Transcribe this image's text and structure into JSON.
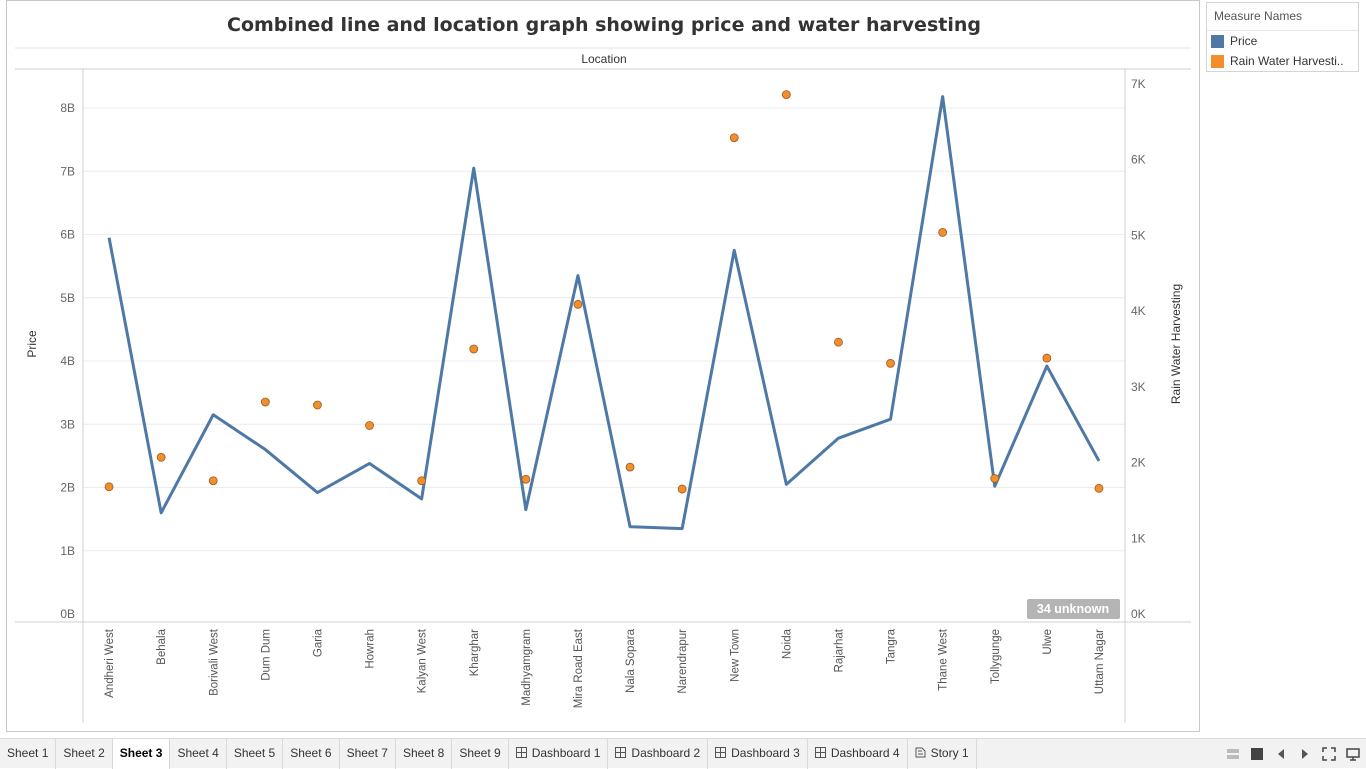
{
  "chart_data": {
    "type": "line",
    "title": "Combined line and location graph showing price and water harvesting",
    "xlabel": "Location",
    "ylabel": "Price",
    "y2label": "Rain Water Harvesting",
    "categories": [
      "Andheri West",
      "Behala",
      "Borivali West",
      "Dum Dum",
      "Garia",
      "Howrah",
      "Kalyan West",
      "Kharghar",
      "Madhyamgram",
      "Mira Road East",
      "Nala Sopara",
      "Narendrapur",
      "New Town",
      "Noida",
      "Rajarhat",
      "Tangra",
      "Thane West",
      "Tollygunge",
      "Ulwe",
      "Uttam Nagar"
    ],
    "series": [
      {
        "name": "Price",
        "axis": "left",
        "mark": "line",
        "color": "#4e79a7",
        "values": [
          5.95,
          1.6,
          3.15,
          2.6,
          1.92,
          2.38,
          1.82,
          7.05,
          1.65,
          5.35,
          1.38,
          1.35,
          5.75,
          2.05,
          2.78,
          3.08,
          8.18,
          2.02,
          3.92,
          2.42
        ]
      },
      {
        "name": "Rain Water Harvesting",
        "axis": "right",
        "mark": "circle",
        "color": "#f28e2b",
        "values": [
          1680,
          2070,
          1760,
          2800,
          2760,
          2490,
          1760,
          3500,
          1780,
          4090,
          1940,
          1650,
          6290,
          6860,
          3590,
          3310,
          5040,
          1790,
          3380,
          1660
        ]
      }
    ],
    "yticks": [
      "0B",
      "1B",
      "2B",
      "3B",
      "4B",
      "5B",
      "6B",
      "7B",
      "8B"
    ],
    "y2ticks": [
      "0K",
      "1K",
      "2K",
      "3K",
      "4K",
      "5K",
      "6K",
      "7K"
    ],
    "ylim": [
      0,
      8.5
    ],
    "y2lim": [
      0,
      7000
    ],
    "grid": true,
    "legend_position": "right",
    "null_indicator": "34 unknown"
  },
  "legend": {
    "title": "Measure Names",
    "items": [
      {
        "label": "Price",
        "color": "#4e79a7"
      },
      {
        "label": "Rain Water Harvesti..",
        "color": "#f28e2b"
      }
    ]
  },
  "tabs": [
    {
      "label": "Sheet 1",
      "icon": "",
      "active": false
    },
    {
      "label": "Sheet 2",
      "icon": "",
      "active": false
    },
    {
      "label": "Sheet 3",
      "icon": "",
      "active": true
    },
    {
      "label": "Sheet 4",
      "icon": "",
      "active": false
    },
    {
      "label": "Sheet 5",
      "icon": "",
      "active": false
    },
    {
      "label": "Sheet 6",
      "icon": "",
      "active": false
    },
    {
      "label": "Sheet 7",
      "icon": "",
      "active": false
    },
    {
      "label": "Sheet 8",
      "icon": "",
      "active": false
    },
    {
      "label": "Sheet 9",
      "icon": "",
      "active": false
    },
    {
      "label": "Dashboard 1",
      "icon": "dashboard-icon",
      "active": false
    },
    {
      "label": "Dashboard 2",
      "icon": "dashboard-icon",
      "active": false
    },
    {
      "label": "Dashboard 3",
      "icon": "dashboard-icon",
      "active": false
    },
    {
      "label": "Dashboard 4",
      "icon": "dashboard-icon",
      "active": false
    },
    {
      "label": "Story 1",
      "icon": "story-icon",
      "active": false
    }
  ],
  "nav": {
    "icons": [
      "show-sheet-sorter-icon",
      "show-filmstrip-icon",
      "prev-sheet-icon",
      "next-sheet-icon",
      "fit-icon",
      "presentation-icon"
    ]
  }
}
